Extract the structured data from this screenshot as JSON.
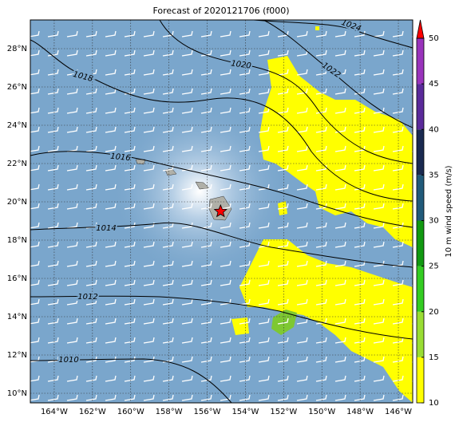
{
  "chart_data": {
    "type": "map",
    "title": "Forecast of 2020121706 (f000)",
    "xlim": [
      -165.25,
      -145.25
    ],
    "ylim": [
      9.5,
      29.5
    ],
    "xticks": [
      {
        "value": -164,
        "label": "164°W"
      },
      {
        "value": -162,
        "label": "162°W"
      },
      {
        "value": -160,
        "label": "160°W"
      },
      {
        "value": -158,
        "label": "158°W"
      },
      {
        "value": -156,
        "label": "156°W"
      },
      {
        "value": -154,
        "label": "154°W"
      },
      {
        "value": -152,
        "label": "152°W"
      },
      {
        "value": -150,
        "label": "150°W"
      },
      {
        "value": -148,
        "label": "148°W"
      },
      {
        "value": -146,
        "label": "146°W"
      }
    ],
    "yticks": [
      {
        "value": 10,
        "label": "10°N"
      },
      {
        "value": 12,
        "label": "12°N"
      },
      {
        "value": 14,
        "label": "14°N"
      },
      {
        "value": 16,
        "label": "16°N"
      },
      {
        "value": 18,
        "label": "18°N"
      },
      {
        "value": 20,
        "label": "20°N"
      },
      {
        "value": 22,
        "label": "22°N"
      },
      {
        "value": 24,
        "label": "24°N"
      },
      {
        "value": 26,
        "label": "26°N"
      },
      {
        "value": 28,
        "label": "28°N"
      }
    ],
    "grid": true,
    "contours": [
      1024,
      1022,
      1020,
      1018,
      1016,
      1014,
      1012,
      1010
    ],
    "marker": {
      "lon": -155.3,
      "lat": 19.5,
      "color": "#ff0000"
    },
    "colorbar": {
      "label": "10 m wind speed (m/s)",
      "lim": [
        10,
        50
      ],
      "ticks": [
        10,
        15,
        20,
        25,
        30,
        35,
        40,
        45,
        50
      ],
      "colors": [
        "#ffff00",
        "#99dd33",
        "#33cc22",
        "#119911",
        "#215a7a",
        "#1a2a50",
        "#5a2a9a",
        "#9933bb"
      ],
      "extend_color": "#ff0000"
    }
  }
}
